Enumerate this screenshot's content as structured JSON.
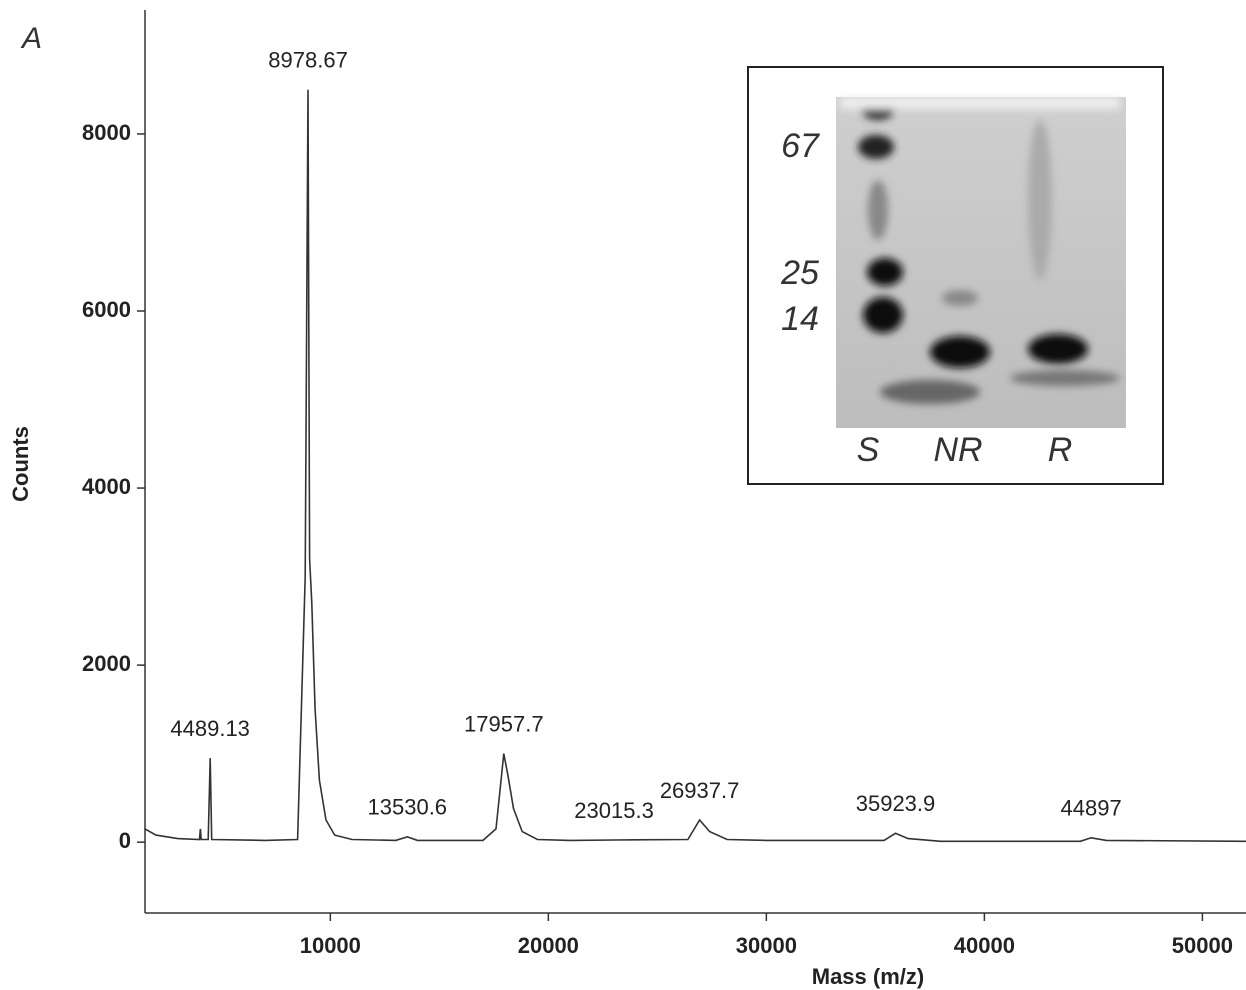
{
  "chart_data": {
    "type": "line",
    "panel_label": "A",
    "x_label": "Mass (m/z)",
    "y_label": "Counts",
    "color": "#333333",
    "xlim": [
      1500,
      52000
    ],
    "ylim": [
      -800,
      9400
    ],
    "xticks": [
      10000,
      20000,
      30000,
      40000,
      50000
    ],
    "yticks": [
      0,
      2000,
      4000,
      6000,
      8000
    ],
    "grid": false,
    "x": [
      1500,
      2000,
      3000,
      4000,
      4040,
      4080,
      4400,
      4489.13,
      4560,
      7000,
      8500,
      8850,
      8978.67,
      9050,
      9150,
      9300,
      9500,
      9800,
      10200,
      11000,
      13000,
      13530.6,
      14000,
      17000,
      17600,
      17957.7,
      18150,
      18400,
      18800,
      19500,
      21000,
      23015.3,
      26400,
      26937.7,
      27400,
      28200,
      30000,
      35400,
      35923.9,
      36500,
      38000,
      44400,
      44897,
      45600,
      52000
    ],
    "values": [
      150,
      80,
      40,
      30,
      150,
      30,
      30,
      950,
      30,
      20,
      30,
      3000,
      8500,
      3200,
      2700,
      1500,
      700,
      250,
      80,
      30,
      20,
      60,
      20,
      20,
      150,
      1000,
      750,
      380,
      120,
      30,
      20,
      25,
      30,
      250,
      120,
      30,
      20,
      20,
      100,
      40,
      10,
      10,
      50,
      20,
      10
    ],
    "annotations": [
      {
        "text": "4489.13",
        "x": 4489.13,
        "y": 950
      },
      {
        "text": "8978.67",
        "x": 8978.67,
        "y": 8500
      },
      {
        "text": "13530.6",
        "x": 13530.6,
        "y": 60
      },
      {
        "text": "17957.7",
        "x": 17957.7,
        "y": 1000
      },
      {
        "text": "23015.3",
        "x": 23015.3,
        "y": 25
      },
      {
        "text": "26937.7",
        "x": 26937.7,
        "y": 250
      },
      {
        "text": "35923.9",
        "x": 35923.9,
        "y": 100
      },
      {
        "text": "44897",
        "x": 44897,
        "y": 50
      }
    ],
    "inset": {
      "markers": [
        "67",
        "25",
        "14"
      ],
      "lanes": [
        "S",
        "NR",
        "R"
      ]
    }
  }
}
